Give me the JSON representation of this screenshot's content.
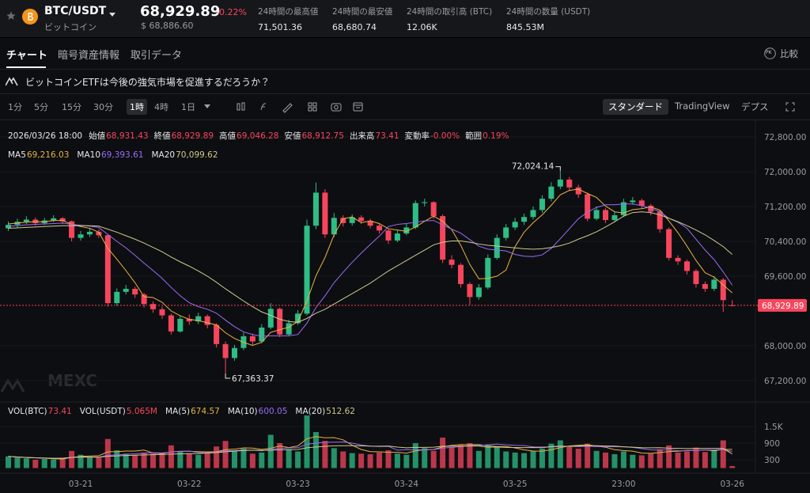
{
  "header": {
    "symbol": "BTC/USDT",
    "name": "ビットコイン",
    "price": "68,929.89",
    "change": "-0.22%",
    "usd_price": "$ 68,886.60",
    "stats": [
      {
        "label": "24時間の最高値",
        "value": "71,501.36"
      },
      {
        "label": "24時間の最安値",
        "value": "68,680.74"
      },
      {
        "label": "24時間の取引高 (BTC)",
        "value": "12.06K"
      },
      {
        "label": "24時間の数量 (USDT)",
        "value": "845.53M"
      }
    ]
  },
  "tabs": {
    "items": [
      "チャート",
      "暗号資産情報",
      "取引データ"
    ],
    "active": 0,
    "compare": "比較",
    "compare_icon": "PK"
  },
  "banner": "ビットコインETFは今後の強気市場を促進するだろうか？",
  "toolbar": {
    "intervals": [
      "1分",
      "5分",
      "15分",
      "30分",
      "1時",
      "4時",
      "1日"
    ],
    "active": 4,
    "views": [
      "スタンダード",
      "TradingView",
      "デプス"
    ],
    "active_view": 0
  },
  "chart_data": {
    "type": "candlestick",
    "up_color": "#2ebd85",
    "down_color": "#f6465d",
    "grid": true,
    "watermark": "MEXC",
    "info": {
      "time": "2026/03/26 18:00",
      "items": [
        {
          "label": "始値",
          "value": "68,931.43"
        },
        {
          "label": "終値",
          "value": "68,929.89"
        },
        {
          "label": "高値",
          "value": "69,046.28"
        },
        {
          "label": "安値",
          "value": "68,912.75"
        },
        {
          "label": "出来高",
          "value": "73.41"
        },
        {
          "label": "変動率",
          "value": "-0.00%"
        },
        {
          "label": "範囲",
          "value": "0.19%"
        }
      ]
    },
    "categories": [
      null,
      null,
      null,
      null,
      null,
      null,
      null,
      null,
      "03-21",
      null,
      null,
      null,
      null,
      null,
      null,
      null,
      null,
      null,
      null,
      null,
      "03-22",
      null,
      null,
      null,
      null,
      null,
      null,
      null,
      null,
      null,
      null,
      null,
      "03-23",
      null,
      null,
      null,
      null,
      null,
      null,
      null,
      null,
      null,
      null,
      null,
      "03-24",
      null,
      null,
      null,
      null,
      null,
      null,
      null,
      null,
      null,
      null,
      null,
      "03-25",
      null,
      null,
      null,
      null,
      null,
      null,
      null,
      null,
      null,
      null,
      null,
      "23:00",
      null,
      null,
      null,
      null,
      null,
      null,
      null,
      null,
      null,
      null,
      null,
      "03-26"
    ],
    "candles": {
      "open": [
        70700,
        70780,
        70850,
        70900,
        70820,
        70880,
        70930,
        70860,
        70480,
        70560,
        70620,
        70540,
        68980,
        69240,
        69310,
        69180,
        68960,
        68840,
        68700,
        68330,
        68620,
        68560,
        68680,
        68480,
        68040,
        67720,
        67950,
        68220,
        68100,
        68420,
        68850,
        68260,
        68520,
        68740,
        70760,
        71520,
        70560,
        70940,
        70820,
        70950,
        70870,
        70760,
        70650,
        70420,
        70580,
        70720,
        71280,
        71300,
        70980,
        69980,
        69860,
        69420,
        69120,
        69340,
        70020,
        70480,
        70720,
        70850,
        70960,
        71120,
        71380,
        71660,
        71820,
        71640,
        71480,
        70920,
        71120,
        70890,
        71000,
        71300,
        71340,
        71220,
        71080,
        70680,
        70020,
        69940,
        69720,
        69420,
        69310,
        69520,
        68931.43
      ],
      "high": [
        70860,
        70920,
        70980,
        70950,
        70940,
        71000,
        70960,
        70880,
        70640,
        70700,
        70680,
        70560,
        69320,
        69400,
        69360,
        69220,
        69020,
        68900,
        68740,
        68700,
        68720,
        68760,
        68720,
        68520,
        68100,
        68020,
        68300,
        68280,
        68500,
        68980,
        68880,
        68600,
        68820,
        70900,
        71750,
        71600,
        71050,
        71000,
        71020,
        71000,
        70920,
        70800,
        70700,
        70660,
        70800,
        71340,
        71380,
        71320,
        71020,
        70080,
        69900,
        69460,
        69420,
        70100,
        70560,
        70800,
        70940,
        71040,
        71200,
        71460,
        71760,
        72024.14,
        71880,
        71700,
        71520,
        71200,
        71160,
        71080,
        71380,
        71420,
        71380,
        71260,
        71120,
        70720,
        70080,
        69980,
        69760,
        69480,
        69600,
        69560,
        69046.28
      ],
      "low": [
        70640,
        70720,
        70800,
        70760,
        70780,
        70840,
        70800,
        70400,
        70420,
        70500,
        70480,
        68900,
        68920,
        69180,
        69100,
        68880,
        68760,
        68620,
        68260,
        68300,
        68480,
        68500,
        68400,
        67960,
        67363.37,
        67660,
        67900,
        68020,
        68060,
        68380,
        68200,
        68220,
        68480,
        68700,
        70680,
        70480,
        70500,
        70740,
        70760,
        70800,
        70700,
        70580,
        70340,
        70380,
        70540,
        70680,
        71200,
        70920,
        69900,
        69780,
        69340,
        68940,
        69060,
        69300,
        69980,
        70420,
        70660,
        70780,
        70900,
        71060,
        71320,
        71600,
        71560,
        71400,
        70860,
        70880,
        70820,
        70840,
        70960,
        71240,
        71160,
        71000,
        70600,
        69960,
        69860,
        69640,
        69340,
        69240,
        69260,
        68780,
        68912.75
      ],
      "close": [
        70780,
        70850,
        70900,
        70820,
        70880,
        70930,
        70860,
        70480,
        70560,
        70620,
        70540,
        68980,
        69240,
        69310,
        69180,
        68960,
        68840,
        68700,
        68330,
        68620,
        68560,
        68680,
        68480,
        68040,
        67720,
        67950,
        68220,
        68100,
        68420,
        68850,
        68260,
        68520,
        68740,
        70760,
        71520,
        70560,
        70940,
        70820,
        70950,
        70870,
        70760,
        70650,
        70420,
        70580,
        70720,
        71280,
        71300,
        70980,
        69980,
        69860,
        69420,
        69120,
        69340,
        70020,
        70480,
        70720,
        70850,
        70960,
        71120,
        71380,
        71660,
        71820,
        71640,
        71480,
        70920,
        71120,
        70890,
        71000,
        71300,
        71340,
        71220,
        71080,
        70680,
        70020,
        69940,
        69720,
        69420,
        69310,
        69520,
        69050,
        68929.89
      ]
    },
    "ma": [
      {
        "name": "MA5",
        "color": "#e8b342",
        "legend_value": "69,216.03",
        "values": [
          70800,
          70820,
          70840,
          70850,
          70850,
          70880,
          70880,
          70790,
          70740,
          70700,
          70610,
          70240,
          69990,
          69730,
          69450,
          69130,
          69110,
          69000,
          68800,
          68690,
          68610,
          68580,
          68530,
          68480,
          68300,
          68170,
          68080,
          68010,
          68080,
          68310,
          68370,
          68430,
          68560,
          69030,
          69610,
          70030,
          70550,
          70920,
          70960,
          70830,
          70870,
          70810,
          70690,
          70660,
          70630,
          70730,
          70860,
          70980,
          70860,
          70670,
          70310,
          69870,
          69540,
          69550,
          69600,
          69740,
          70280,
          70610,
          70830,
          71010,
          71230,
          71470,
          71570,
          71600,
          71500,
          71410,
          71210,
          71080,
          71050,
          71130,
          71150,
          71190,
          71120,
          70870,
          70600,
          70290,
          69960,
          69680,
          69580,
          69400,
          69216.03
        ]
      },
      {
        "name": "MA10",
        "color": "#9b6cf7",
        "legend_value": "69,393.61",
        "values": [
          70750,
          70760,
          70780,
          70790,
          70800,
          70810,
          70820,
          70790,
          70770,
          70750,
          70720,
          70560,
          70400,
          70250,
          70080,
          69900,
          69730,
          69550,
          69340,
          69150,
          68990,
          68900,
          68840,
          68750,
          68590,
          68440,
          68320,
          68260,
          68220,
          68230,
          68230,
          68230,
          68260,
          68520,
          68880,
          69150,
          69450,
          69690,
          69920,
          70130,
          70330,
          70520,
          70740,
          70790,
          70810,
          70840,
          70870,
          70880,
          70780,
          70680,
          70590,
          70440,
          70290,
          70220,
          70200,
          70180,
          70100,
          70060,
          70050,
          70090,
          70240,
          70460,
          70690,
          70920,
          71070,
          71180,
          71240,
          71240,
          71260,
          71260,
          71220,
          71160,
          71080,
          70930,
          70840,
          70700,
          70450,
          70200,
          69980,
          69700,
          69393.61
        ]
      },
      {
        "name": "MA20",
        "color": "#cfc98f",
        "legend_value": "70,099.62",
        "values": [
          70700,
          70710,
          70720,
          70730,
          70740,
          70750,
          70760,
          70760,
          70760,
          70760,
          70750,
          70680,
          70610,
          70530,
          70450,
          70360,
          70260,
          70160,
          70040,
          69930,
          69830,
          69720,
          69600,
          69460,
          69310,
          69170,
          69030,
          68900,
          68780,
          68700,
          68610,
          68560,
          68540,
          68630,
          68750,
          68840,
          68960,
          69080,
          69200,
          69320,
          69440,
          69580,
          69720,
          69840,
          69960,
          70080,
          70200,
          70320,
          70380,
          70410,
          70410,
          70380,
          70340,
          70310,
          70290,
          70270,
          70250,
          70230,
          70220,
          70230,
          70260,
          70300,
          70360,
          70450,
          70530,
          70620,
          70730,
          70850,
          70980,
          71060,
          71080,
          71060,
          71010,
          70930,
          70850,
          70760,
          70660,
          70550,
          70420,
          70280,
          70099.62
        ]
      }
    ],
    "ylim": [
      66764,
      73182
    ],
    "yticks": [
      {
        "value": 67200,
        "label": "67,200.00"
      },
      {
        "value": 68000,
        "label": "68,000.00"
      },
      {
        "value": 69600,
        "label": "69,600.00"
      },
      {
        "value": 70400,
        "label": "70,400.00"
      },
      {
        "value": 71200,
        "label": "71,200.00"
      },
      {
        "value": 72000,
        "label": "72,000.00"
      },
      {
        "value": 72800,
        "label": "72,800.00"
      }
    ],
    "last_price": {
      "value": 68929.89,
      "label": "68,929.89"
    },
    "high_label": {
      "value": 72024.14,
      "label": "72,024.14"
    },
    "low_label": {
      "value": 67363.37,
      "label": "67,363.37"
    },
    "volume": {
      "legend": [
        {
          "name": "VOL(BTC)",
          "value": "73.41"
        },
        {
          "name": "VOL(USDT)",
          "value": "5.065M"
        }
      ],
      "ylim": [
        0,
        2100
      ],
      "yticks": [
        {
          "value": 1500,
          "label": "1.5K"
        },
        900,
        300
      ],
      "values": [
        420,
        380,
        350,
        300,
        330,
        310,
        360,
        620,
        480,
        400,
        380,
        1050,
        640,
        520,
        480,
        560,
        520,
        540,
        820,
        600,
        520,
        480,
        560,
        780,
        980,
        620,
        700,
        520,
        560,
        1200,
        900,
        680,
        600,
        1900,
        1300,
        980,
        720,
        600,
        540,
        520,
        500,
        560,
        640,
        520,
        480,
        900,
        720,
        620,
        1100,
        760,
        840,
        900,
        620,
        820,
        740,
        600,
        560,
        540,
        620,
        700,
        880,
        1000,
        760,
        700,
        880,
        620,
        560,
        500,
        600,
        480,
        460,
        520,
        680,
        820,
        560,
        600,
        740,
        580,
        640,
        1000,
        73.41
      ],
      "ma": [
        {
          "name": "MA(5)",
          "color": "#e8b342",
          "legend_value": "674.57",
          "values": [
            420,
            400,
            383,
            370,
            356,
            334,
            330,
            384,
            420,
            434,
            448,
            586,
            594,
            614,
            614,
            650,
            544,
            524,
            584,
            608,
            604,
            592,
            584,
            588,
            664,
            684,
            728,
            720,
            676,
            716,
            800,
            740,
            800,
            1060,
            1136,
            1092,
            1100,
            1020,
            828,
            672,
            592,
            584,
            572,
            568,
            540,
            620,
            664,
            672,
            764,
            820,
            848,
            848,
            848,
            808,
            780,
            780,
            728,
            656,
            616,
            612,
            660,
            740,
            800,
            822,
            844,
            792,
            752,
            664,
            632,
            612,
            544,
            532,
            560,
            596,
            608,
            636,
            640,
            656,
            624,
            674,
            674.57
          ]
        },
        {
          "name": "MA(10)",
          "color": "#9b6cf7",
          "legend_value": "600.05",
          "values": [
            420,
            400,
            383,
            370,
            362,
            353,
            353,
            386,
            397,
            397,
            393,
            460,
            476,
            498,
            513,
            538,
            554,
            546,
            580,
            600,
            614,
            557,
            549,
            575,
            625,
            631,
            649,
            647,
            621,
            681,
            711,
            730,
            734,
            866,
            898,
            934,
            936,
            944,
            900,
            832,
            792,
            780,
            784,
            646,
            664,
            656,
            664,
            666,
            722,
            746,
            780,
            814,
            812,
            842,
            868,
            838,
            822,
            814,
            766,
            760,
            764,
            774,
            788,
            776,
            790,
            778,
            774,
            770,
            768,
            746,
            704,
            656,
            648,
            660,
            628,
            626,
            644,
            652,
            656,
            668,
            600.05
          ]
        },
        {
          "name": "MA(20)",
          "color": "#cfc98f",
          "legend_value": "512.62",
          "values": [
            420,
            400,
            383,
            370,
            362,
            353,
            353,
            386,
            397,
            397,
            395,
            425,
            441,
            455,
            464,
            475,
            483,
            492,
            505,
            514,
            521,
            524,
            542,
            561,
            585,
            615,
            631,
            645,
            641,
            648,
            660,
            667,
            670,
            734,
            759,
            787,
            803,
            806,
            806,
            803,
            792,
            789,
            796,
            757,
            732,
            746,
            748,
            753,
            791,
            789,
            786,
            797,
            798,
            753,
            760,
            747,
            743,
            740,
            744,
            734,
            776,
            794,
            782,
            800,
            812,
            808,
            798,
            792,
            767,
            753,
            734,
            733,
            735,
            718,
            709,
            702,
            709,
            711,
            712,
            706,
            512.62
          ]
        }
      ]
    }
  }
}
